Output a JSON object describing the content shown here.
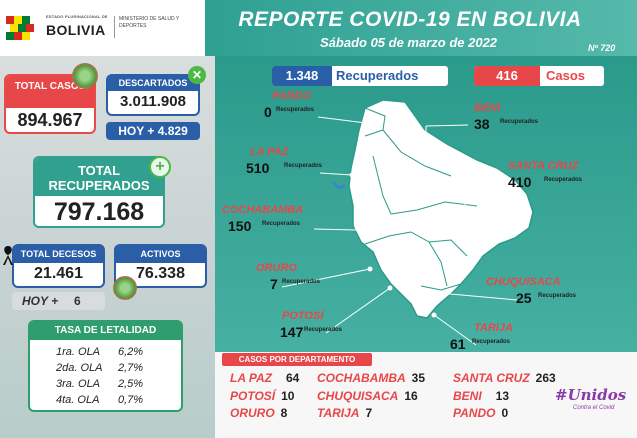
{
  "header": {
    "logo_small": "ESTADO PLURINACIONAL DE",
    "logo_big": "BOLIVIA",
    "ministry": "MINISTERIO DE SALUD Y DEPORTES",
    "title": "REPORTE COVID-19 EN BOLIVIA",
    "subtitle": "Sábado 05 de marzo de 2022",
    "report_number": "Nº 720"
  },
  "summary": {
    "total_casos_label": "TOTAL CASOS",
    "total_casos": "894.967",
    "descartados_label": "DESCARTADOS",
    "descartados": "3.011.908",
    "hoy_descartados": "HOY + 4.829",
    "total_recuperados_label": "TOTAL RECUPERADOS",
    "total_recuperados": "797.168",
    "total_decesos_label": "TOTAL DECESOS",
    "total_decesos": "21.461",
    "hoy_decesos_label": "HOY +",
    "hoy_decesos": "6",
    "activos_label": "ACTIVOS",
    "activos": "76.338"
  },
  "letalidad": {
    "title": "TASA DE LETALIDAD",
    "rows": [
      {
        "ola": "1ra. OLA",
        "valor": "6,2%"
      },
      {
        "ola": "2da. OLA",
        "valor": "2,7%"
      },
      {
        "ola": "3ra. OLA",
        "valor": "2,5%"
      },
      {
        "ola": "4ta. OLA",
        "valor": "0,7%"
      }
    ]
  },
  "badges": {
    "recuperados_num": "1.348",
    "recuperados_label": "Recuperados",
    "casos_num": "416",
    "casos_label": "Casos"
  },
  "departments": {
    "unit": "Recuperados",
    "pando": {
      "name": "PANDO",
      "value": "0"
    },
    "beni": {
      "name": "BENI",
      "value": "38"
    },
    "lapaz": {
      "name": "LA PAZ",
      "value": "510"
    },
    "santacruz": {
      "name": "SANTA CRUZ",
      "value": "410"
    },
    "cochabamba": {
      "name": "COCHABAMBA",
      "value": "150"
    },
    "oruro": {
      "name": "ORURO",
      "value": "7"
    },
    "chuquisaca": {
      "name": "CHUQUISACA",
      "value": "25"
    },
    "potosi": {
      "name": "POTOSÍ",
      "value": "147"
    },
    "tarija": {
      "name": "TARIJA",
      "value": "61"
    }
  },
  "casos_por_departamento": {
    "label": "CASOS POR DEPARTAMENTO",
    "items": [
      {
        "name": "LA PAZ",
        "value": "64"
      },
      {
        "name": "COCHABAMBA",
        "value": "35"
      },
      {
        "name": "SANTA CRUZ",
        "value": "263"
      },
      {
        "name": "POTOSÍ",
        "value": "10"
      },
      {
        "name": "CHUQUISACA",
        "value": "16"
      },
      {
        "name": "BENI",
        "value": "13"
      },
      {
        "name": "ORURO",
        "value": "8"
      },
      {
        "name": "TARIJA",
        "value": "7"
      },
      {
        "name": "PANDO",
        "value": "0"
      }
    ]
  },
  "campaign": {
    "title": "#Unidos",
    "subtitle": "Contra el Covid"
  },
  "colors": {
    "teal": "#2ea092",
    "red": "#e8474a",
    "blue": "#2a5fa8",
    "green": "#2f9d6e"
  }
}
